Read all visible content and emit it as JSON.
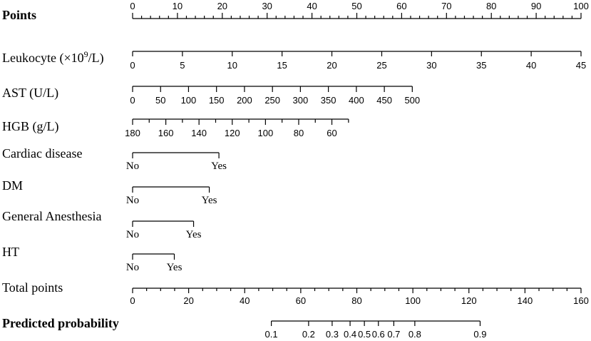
{
  "chart_data": {
    "type": "nomogram",
    "points_scale": {
      "label": "Points",
      "min": 0,
      "max": 100
    },
    "variables": [
      {
        "name": "Leukocyte (×10⁹/L)",
        "label_plain": "Leukocyte (×10",
        "label_sup": "9",
        "label_tail": "/L)",
        "values": [
          0,
          5,
          10,
          15,
          20,
          25,
          30,
          35,
          40,
          45
        ],
        "labels": [
          "0",
          "5",
          "10",
          "15",
          "20",
          "25",
          "30",
          "35",
          "40",
          "45"
        ],
        "points": [
          0,
          11.11,
          22.22,
          33.33,
          44.44,
          55.56,
          66.67,
          77.78,
          88.89,
          100
        ],
        "tick_side": "below",
        "label_font": "sans"
      },
      {
        "name": "AST (U/L)",
        "values": [
          0,
          50,
          100,
          150,
          200,
          250,
          300,
          350,
          400,
          450,
          500
        ],
        "labels": [
          "0",
          "50",
          "100",
          "150",
          "200",
          "250",
          "300",
          "350",
          "400",
          "450",
          "500"
        ],
        "points": [
          0,
          6.24,
          12.47,
          18.71,
          24.95,
          31.19,
          37.42,
          43.66,
          49.9,
          56.14,
          62.37
        ],
        "tick_side": "above",
        "label_font": "sans"
      },
      {
        "name": "HGB (g/L)",
        "values": [
          180,
          170,
          160,
          150,
          140,
          130,
          120,
          110,
          100,
          90,
          80,
          70,
          60,
          50
        ],
        "labels": [
          "180",
          "",
          "160",
          "",
          "140",
          "",
          "120",
          "",
          "100",
          "",
          "80",
          "",
          "60",
          ""
        ],
        "points": [
          0,
          3.7,
          7.41,
          11.11,
          14.81,
          18.52,
          22.22,
          25.93,
          29.63,
          33.33,
          37.04,
          40.74,
          44.44,
          48.15
        ],
        "tick_side": "above",
        "label_font": "sans"
      },
      {
        "name": "Cardiac disease",
        "values": [
          "No",
          "Yes"
        ],
        "labels": [
          "No",
          "Yes"
        ],
        "points": [
          0,
          19.25
        ],
        "tick_side": "above",
        "label_font": "serif"
      },
      {
        "name": "DM",
        "values": [
          "No",
          "Yes"
        ],
        "labels": [
          "No",
          "Yes"
        ],
        "points": [
          0,
          17.1
        ],
        "tick_side": "above",
        "label_font": "serif"
      },
      {
        "name": "General Anesthesia",
        "values": [
          "No",
          "Yes"
        ],
        "labels": [
          "No",
          "Yes"
        ],
        "points": [
          0,
          13.6
        ],
        "tick_side": "above",
        "label_font": "serif"
      },
      {
        "name": "HT",
        "values": [
          "No",
          "Yes"
        ],
        "labels": [
          "No",
          "Yes"
        ],
        "points": [
          0,
          9.3
        ],
        "tick_side": "above",
        "label_font": "serif"
      }
    ],
    "total_points": {
      "label": "Total points",
      "min": 0,
      "max": 160,
      "ticks": [
        0,
        20,
        40,
        60,
        80,
        100,
        120,
        140,
        160
      ]
    },
    "predicted_probability": {
      "label": "Predicted probability",
      "values": [
        0.1,
        0.2,
        0.3,
        0.4,
        0.5,
        0.6,
        0.7,
        0.8,
        0.9
      ],
      "labels": [
        "0.1",
        "0.2",
        "0.3",
        "0.4",
        "0.5",
        "0.6",
        "0.7",
        "0.8",
        "0.9"
      ],
      "total_points": [
        49.5,
        62.8,
        71.2,
        77.6,
        82.7,
        87.7,
        93.2,
        100.7,
        124.0
      ]
    }
  }
}
